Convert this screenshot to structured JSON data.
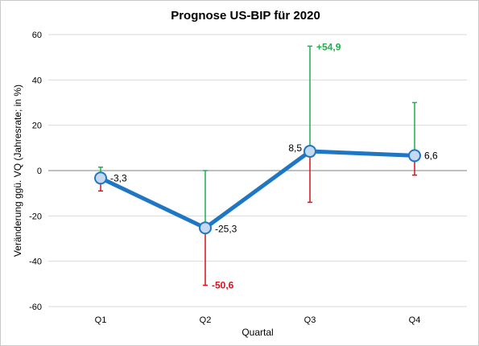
{
  "chart_data": {
    "type": "line",
    "title": "Prognose US-BIP für 2020",
    "xlabel": "Quartal",
    "ylabel": "Veränderung ggü. VQ (Jahresrate; in %)",
    "categories": [
      "Q1",
      "Q2",
      "Q3",
      "Q4"
    ],
    "ylim": [
      -60,
      60
    ],
    "yticks": [
      60,
      40,
      20,
      0,
      -20,
      -40,
      -60
    ],
    "grid": true,
    "series": [
      {
        "values": [
          -3.3,
          -25.3,
          8.5,
          6.6
        ],
        "labels": [
          "-3,3",
          "-25,3",
          "8,5",
          "6,6"
        ],
        "color": "#1f77c4"
      }
    ],
    "range_high": [
      1.5,
      0,
      54.9,
      30
    ],
    "range_low": [
      -9,
      -50.6,
      -14,
      -2
    ],
    "annotations": [
      {
        "category": "Q3",
        "value": 54.9,
        "text": "+54,9",
        "color": "#1db04b"
      },
      {
        "category": "Q2",
        "value": -50.6,
        "text": "-50,6",
        "color": "#d9121a"
      }
    ],
    "high_color": "#1db04b",
    "low_color": "#d9121a"
  }
}
